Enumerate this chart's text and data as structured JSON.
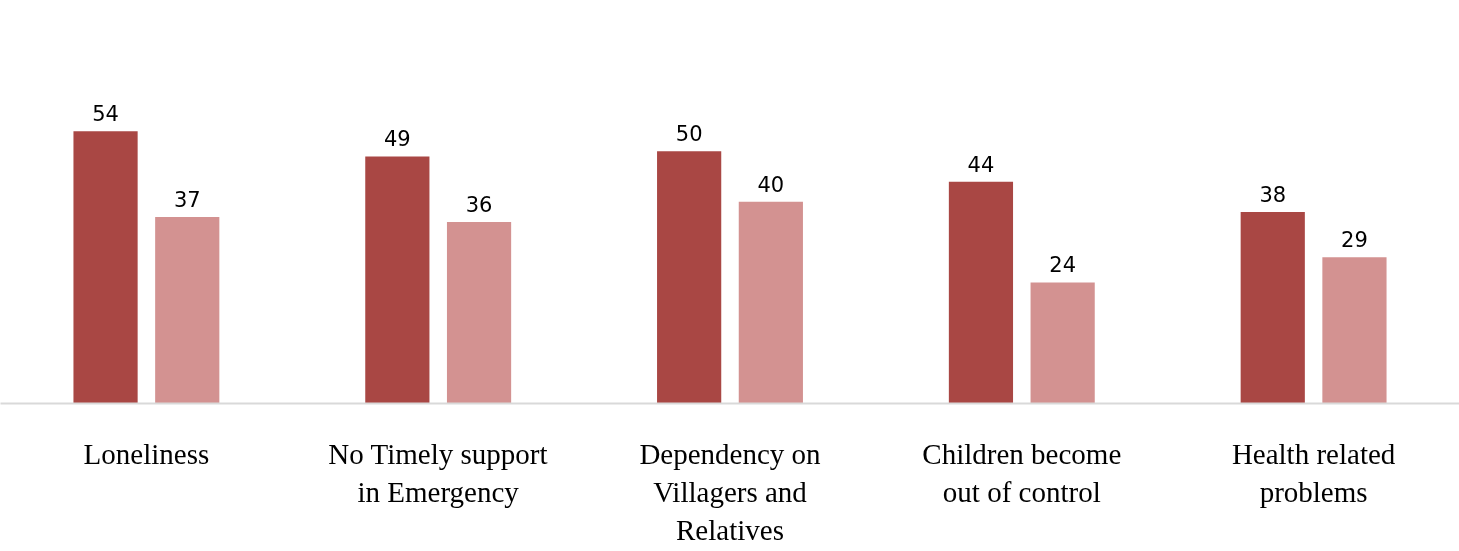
{
  "chart_data": {
    "type": "bar",
    "categories": [
      "Loneliness",
      "No Timely support in Emergency",
      "Dependency on Villagers and Relatives",
      "Children become out of control",
      "Health related problems"
    ],
    "series": [
      {
        "color": "#a94744",
        "values": [
          54,
          49,
          50,
          44,
          38
        ]
      },
      {
        "color": "#d39291",
        "values": [
          37,
          36,
          40,
          24,
          29
        ]
      }
    ],
    "data_labels": true,
    "grid": false
  }
}
